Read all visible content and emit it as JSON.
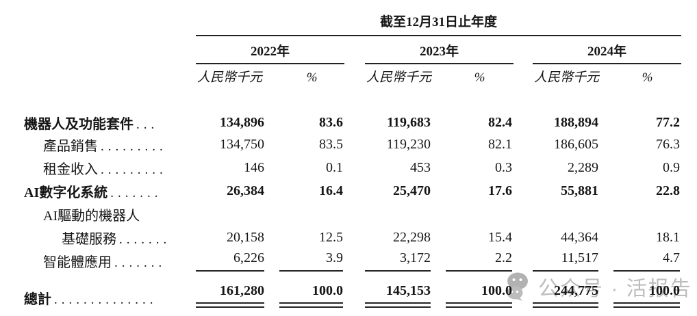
{
  "table": {
    "period_header": "截至12月31日止年度",
    "years": [
      "2022年",
      "2023年",
      "2024年"
    ],
    "col_headers": {
      "amount": "人民幣千元",
      "pct": "%"
    },
    "rows": [
      {
        "label": "機器人及功能套件",
        "dots": "...",
        "bold": true,
        "indent": 0,
        "values": [
          "134,896",
          "83.6",
          "119,683",
          "82.4",
          "188,894",
          "77.2"
        ]
      },
      {
        "label": "產品銷售",
        "dots": ".........",
        "bold": false,
        "indent": 1,
        "values": [
          "134,750",
          "83.5",
          "119,230",
          "82.1",
          "186,605",
          "76.3"
        ]
      },
      {
        "label": "租金收入",
        "dots": ".........",
        "bold": false,
        "indent": 1,
        "values": [
          "146",
          "0.1",
          "453",
          "0.3",
          "2,289",
          "0.9"
        ]
      },
      {
        "label": "AI數字化系統",
        "dots": ".......",
        "bold": true,
        "indent": 0,
        "values": [
          "26,384",
          "16.4",
          "25,470",
          "17.6",
          "55,881",
          "22.8"
        ]
      },
      {
        "label": "AI驅動的機器人",
        "dots": "",
        "bold": false,
        "indent": 1,
        "values": []
      },
      {
        "label": "基礎服務",
        "dots": ".......",
        "bold": false,
        "indent": 2,
        "values": [
          "20,158",
          "12.5",
          "22,298",
          "15.4",
          "44,364",
          "18.1"
        ]
      },
      {
        "label": "智能體應用",
        "dots": ".......",
        "bold": false,
        "indent": 1,
        "values": [
          "6,226",
          "3.9",
          "3,172",
          "2.2",
          "11,517",
          "4.7"
        ],
        "underline": true
      },
      {
        "label": "總計",
        "dots": "..............",
        "bold": true,
        "indent": 0,
        "values": [
          "161,280",
          "100.0",
          "145,153",
          "100.0",
          "244,775",
          "100.0"
        ],
        "double_underline": true
      }
    ]
  },
  "watermark": {
    "icon": "wechat-icon",
    "text": "公众号 · 活报告"
  },
  "colors": {
    "text": "#161616",
    "rule": "#222222",
    "watermark_gray": "#b8b8b8"
  }
}
